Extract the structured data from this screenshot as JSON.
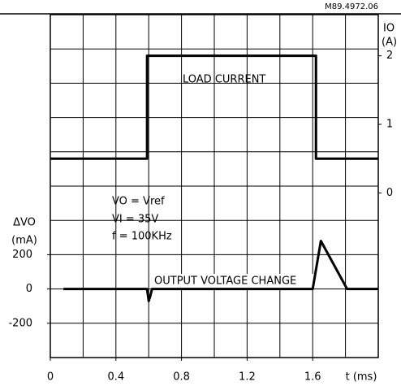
{
  "chart_data": {
    "type": "line",
    "code": "M89.4972.06",
    "xlabel": "t (ms)",
    "ylabel": "ΔVO",
    "ylabel_unit": "(mA)",
    "y2label": "IO",
    "y2label_unit": "(A)",
    "annotations": [
      "VO = Vref",
      "VI = 35V",
      "f = 100KHz"
    ],
    "xlim": [
      0,
      2.0
    ],
    "xticks": [
      0,
      0.4,
      0.8,
      1.2,
      1.6
    ],
    "ylim": [
      -400,
      1600
    ],
    "yticks": [
      -200,
      0,
      200
    ],
    "y2lim": [
      -2.4,
      2.6
    ],
    "y2ticks": [
      0,
      1,
      2
    ],
    "grid": true,
    "series": [
      {
        "name": "LOAD CURRENT",
        "color": "#000000",
        "axis": "y2",
        "x": [
          0,
          0.59,
          0.59,
          1.62,
          1.62,
          2.0
        ],
        "values": [
          0.5,
          0.5,
          2,
          2,
          0.5,
          0.5
        ]
      },
      {
        "name": "OUTPUT VOLTAGE CHANGE",
        "color": "#000000",
        "x": [
          0.08,
          0.59,
          0.6,
          0.61,
          0.62,
          1.6,
          1.65,
          1.81,
          2.0
        ],
        "values": [
          0,
          0,
          -70,
          -40,
          0,
          0,
          280,
          0,
          0
        ]
      }
    ]
  }
}
